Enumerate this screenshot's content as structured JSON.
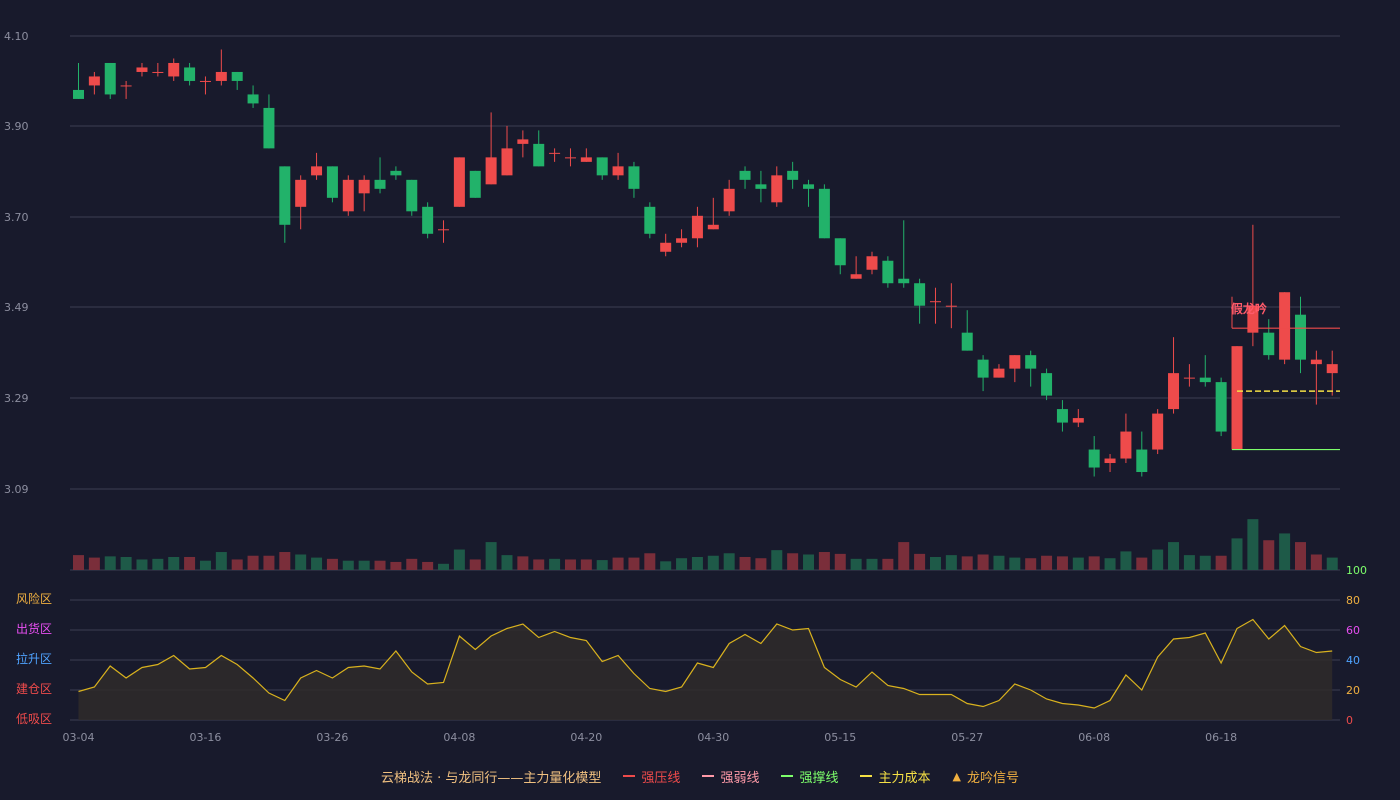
{
  "chart_data": {
    "type": "candlestick",
    "x_ticks": [
      "03-04",
      "03-16",
      "03-26",
      "04-08",
      "04-20",
      "04-30",
      "05-15",
      "05-27",
      "06-08",
      "06-18"
    ],
    "price_ticks": [
      "4.10",
      "3.90",
      "3.70",
      "3.49",
      "3.29",
      "3.09"
    ],
    "price_range": [
      3.02,
      4.1
    ],
    "candles": [
      [
        3.98,
        3.96,
        4.04,
        3.96
      ],
      [
        3.99,
        4.01,
        4.02,
        3.97
      ],
      [
        4.04,
        3.97,
        4.04,
        3.96
      ],
      [
        3.99,
        3.99,
        4.0,
        3.96
      ],
      [
        4.02,
        4.03,
        4.04,
        4.01
      ],
      [
        4.02,
        4.02,
        4.04,
        4.01
      ],
      [
        4.01,
        4.04,
        4.05,
        4.0
      ],
      [
        4.03,
        4.0,
        4.04,
        3.99
      ],
      [
        4.0,
        4.0,
        4.01,
        3.97
      ],
      [
        4.0,
        4.02,
        4.07,
        3.99
      ],
      [
        4.02,
        4.0,
        4.02,
        3.98
      ],
      [
        3.97,
        3.95,
        3.99,
        3.94
      ],
      [
        3.94,
        3.85,
        3.97,
        3.85
      ],
      [
        3.81,
        3.68,
        3.81,
        3.64
      ],
      [
        3.72,
        3.78,
        3.79,
        3.67
      ],
      [
        3.79,
        3.81,
        3.84,
        3.78
      ],
      [
        3.81,
        3.74,
        3.81,
        3.73
      ],
      [
        3.71,
        3.78,
        3.79,
        3.7
      ],
      [
        3.75,
        3.78,
        3.79,
        3.71
      ],
      [
        3.78,
        3.76,
        3.83,
        3.75
      ],
      [
        3.8,
        3.79,
        3.81,
        3.78
      ],
      [
        3.78,
        3.71,
        3.78,
        3.7
      ],
      [
        3.72,
        3.66,
        3.73,
        3.65
      ],
      [
        3.67,
        3.67,
        3.69,
        3.64
      ],
      [
        3.72,
        3.83,
        3.83,
        3.72
      ],
      [
        3.8,
        3.74,
        3.8,
        3.74
      ],
      [
        3.77,
        3.83,
        3.93,
        3.77
      ],
      [
        3.79,
        3.85,
        3.9,
        3.79
      ],
      [
        3.86,
        3.87,
        3.89,
        3.83
      ],
      [
        3.86,
        3.81,
        3.89,
        3.81
      ],
      [
        3.84,
        3.84,
        3.85,
        3.82
      ],
      [
        3.83,
        3.83,
        3.85,
        3.81
      ],
      [
        3.82,
        3.83,
        3.85,
        3.82
      ],
      [
        3.83,
        3.79,
        3.83,
        3.78
      ],
      [
        3.79,
        3.81,
        3.84,
        3.78
      ],
      [
        3.81,
        3.76,
        3.82,
        3.74
      ],
      [
        3.72,
        3.66,
        3.73,
        3.65
      ],
      [
        3.62,
        3.64,
        3.66,
        3.61
      ],
      [
        3.64,
        3.65,
        3.67,
        3.63
      ],
      [
        3.65,
        3.7,
        3.72,
        3.63
      ],
      [
        3.67,
        3.68,
        3.74,
        3.67
      ],
      [
        3.71,
        3.76,
        3.78,
        3.7
      ],
      [
        3.8,
        3.78,
        3.81,
        3.76
      ],
      [
        3.77,
        3.76,
        3.8,
        3.73
      ],
      [
        3.73,
        3.79,
        3.81,
        3.72
      ],
      [
        3.8,
        3.78,
        3.82,
        3.76
      ],
      [
        3.77,
        3.76,
        3.78,
        3.72
      ],
      [
        3.76,
        3.65,
        3.77,
        3.65
      ],
      [
        3.65,
        3.59,
        3.65,
        3.57
      ],
      [
        3.56,
        3.57,
        3.61,
        3.56
      ],
      [
        3.58,
        3.61,
        3.62,
        3.57
      ],
      [
        3.6,
        3.55,
        3.61,
        3.54
      ],
      [
        3.56,
        3.55,
        3.69,
        3.54
      ],
      [
        3.55,
        3.5,
        3.56,
        3.46
      ],
      [
        3.51,
        3.51,
        3.54,
        3.46
      ],
      [
        3.5,
        3.5,
        3.55,
        3.45
      ],
      [
        3.44,
        3.4,
        3.49,
        3.4
      ],
      [
        3.38,
        3.34,
        3.39,
        3.31
      ],
      [
        3.34,
        3.36,
        3.37,
        3.34
      ],
      [
        3.36,
        3.39,
        3.39,
        3.33
      ],
      [
        3.39,
        3.36,
        3.4,
        3.32
      ],
      [
        3.35,
        3.3,
        3.36,
        3.29
      ],
      [
        3.27,
        3.24,
        3.29,
        3.22
      ],
      [
        3.24,
        3.25,
        3.27,
        3.23
      ],
      [
        3.18,
        3.14,
        3.21,
        3.12
      ],
      [
        3.15,
        3.16,
        3.17,
        3.13
      ],
      [
        3.16,
        3.22,
        3.26,
        3.15
      ],
      [
        3.18,
        3.13,
        3.22,
        3.12
      ],
      [
        3.18,
        3.26,
        3.27,
        3.17
      ],
      [
        3.27,
        3.35,
        3.43,
        3.26
      ],
      [
        3.34,
        3.34,
        3.37,
        3.32
      ],
      [
        3.34,
        3.33,
        3.39,
        3.32
      ],
      [
        3.33,
        3.22,
        3.34,
        3.21
      ],
      [
        3.18,
        3.41,
        3.41,
        3.18
      ],
      [
        3.44,
        3.5,
        3.68,
        3.41
      ],
      [
        3.44,
        3.39,
        3.47,
        3.38
      ],
      [
        3.38,
        3.53,
        3.53,
        3.37
      ],
      [
        3.48,
        3.38,
        3.52,
        3.35
      ],
      [
        3.37,
        3.38,
        3.4,
        3.28
      ],
      [
        3.35,
        3.37,
        3.4,
        3.3
      ]
    ],
    "volume": [
      [
        24,
        0
      ],
      [
        20,
        0
      ],
      [
        22,
        1
      ],
      [
        21,
        1
      ],
      [
        17,
        1
      ],
      [
        18,
        1
      ],
      [
        21,
        1
      ],
      [
        21,
        0
      ],
      [
        15,
        1
      ],
      [
        29,
        1
      ],
      [
        17,
        0
      ],
      [
        23,
        0
      ],
      [
        23,
        0
      ],
      [
        29,
        0
      ],
      [
        25,
        1
      ],
      [
        20,
        1
      ],
      [
        18,
        0
      ],
      [
        15,
        1
      ],
      [
        15,
        1
      ],
      [
        15,
        0
      ],
      [
        13,
        0
      ],
      [
        18,
        0
      ],
      [
        13,
        0
      ],
      [
        10,
        1
      ],
      [
        33,
        1
      ],
      [
        17,
        0
      ],
      [
        45,
        1
      ],
      [
        24,
        1
      ],
      [
        22,
        0
      ],
      [
        17,
        0
      ],
      [
        18,
        1
      ],
      [
        17,
        0
      ],
      [
        17,
        0
      ],
      [
        16,
        1
      ],
      [
        20,
        0
      ],
      [
        20,
        0
      ],
      [
        27,
        0
      ],
      [
        14,
        1
      ],
      [
        19,
        1
      ],
      [
        21,
        1
      ],
      [
        23,
        1
      ],
      [
        27,
        1
      ],
      [
        21,
        0
      ],
      [
        19,
        0
      ],
      [
        32,
        1
      ],
      [
        27,
        0
      ],
      [
        25,
        1
      ],
      [
        29,
        0
      ],
      [
        26,
        0
      ],
      [
        18,
        1
      ],
      [
        18,
        1
      ],
      [
        18,
        0
      ],
      [
        45,
        0
      ],
      [
        26,
        0
      ],
      [
        21,
        1
      ],
      [
        24,
        1
      ],
      [
        22,
        0
      ],
      [
        25,
        0
      ],
      [
        23,
        1
      ],
      [
        20,
        1
      ],
      [
        19,
        0
      ],
      [
        23,
        0
      ],
      [
        22,
        0
      ],
      [
        20,
        1
      ],
      [
        22,
        0
      ],
      [
        19,
        1
      ],
      [
        30,
        1
      ],
      [
        20,
        0
      ],
      [
        33,
        1
      ],
      [
        45,
        1
      ],
      [
        24,
        1
      ],
      [
        23,
        1
      ],
      [
        23,
        0
      ],
      [
        51,
        1
      ],
      [
        82,
        1
      ],
      [
        48,
        0
      ],
      [
        59,
        1
      ],
      [
        45,
        0
      ],
      [
        25,
        0
      ],
      [
        20,
        1
      ]
    ],
    "osc_ticks": [
      "0",
      "20",
      "40",
      "60",
      "80",
      "100"
    ],
    "osc_zones": [
      "低吸区",
      "建仓区",
      "拉升区",
      "出货区",
      "风险区"
    ],
    "osc_values": [
      19,
      22,
      36,
      28,
      35,
      37,
      43,
      34,
      35,
      43,
      37,
      28,
      18,
      13,
      28,
      33,
      28,
      35,
      36,
      34,
      46,
      32,
      24,
      25,
      56,
      47,
      56,
      61,
      64,
      55,
      59,
      55,
      53,
      39,
      43,
      31,
      21,
      19,
      22,
      38,
      35,
      51,
      57,
      51,
      64,
      60,
      61,
      35,
      27,
      22,
      32,
      23,
      21,
      17,
      17,
      17,
      11,
      9,
      13,
      24,
      20,
      14,
      11,
      10,
      8,
      13,
      30,
      20,
      42,
      54,
      55,
      58,
      38,
      61,
      67,
      54,
      63,
      49,
      45,
      46
    ],
    "signal_text": "假龙吟",
    "legend": [
      {
        "label": "云梯战法 · 与龙同行——主力量化模型",
        "color": "#f0c080",
        "swatch": "none"
      },
      {
        "label": "强压线",
        "color": "#ee4b4b",
        "swatch": "solid"
      },
      {
        "label": "强弱线",
        "color": "#ff9aa8",
        "swatch": "dashed"
      },
      {
        "label": "强撑线",
        "color": "#7dff6b",
        "swatch": "solid"
      },
      {
        "label": "主力成本",
        "color": "#f5e045",
        "swatch": "dashed"
      },
      {
        "label": "龙吟信号",
        "color": "#f0b040",
        "swatch": "triangle"
      }
    ],
    "colors": {
      "background": "#181a2c",
      "up": "#ee4b4b",
      "down": "#22b26a",
      "grid": "#3b3d52",
      "axis_text": "#8c8e9f",
      "osc_line": "#d9b21e",
      "osc_fill": "#2f2c2a",
      "resistance": "#ee4b4b",
      "support": "#7dff6b",
      "cost": "#f5e045",
      "vol_up": "#7a2e3a",
      "vol_down": "#1e5a48"
    },
    "zone_colors": [
      "#ee4b4b",
      "#ee4b4b",
      "#4fa3ff",
      "#e84ef2",
      "#f0b040"
    ],
    "osc_tick_colors": [
      "#ee4b4b",
      "#f0b040",
      "#4fa3ff",
      "#e84ef2",
      "#f0b040",
      "#7dff6b"
    ],
    "resistance_level": 3.45,
    "support_level": 3.18,
    "cost_level": 3.31,
    "lines_start_index": 73
  }
}
